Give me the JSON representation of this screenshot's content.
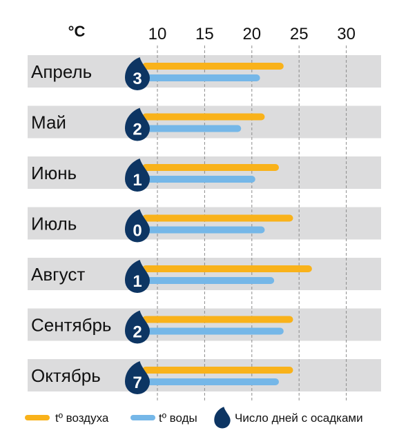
{
  "chart_data": {
    "type": "bar",
    "unit": "°C",
    "categories": [
      "Апрель",
      "Май",
      "Июнь",
      "Июль",
      "Август",
      "Сентябрь",
      "Октябрь"
    ],
    "series": [
      {
        "name": "tº воздуха",
        "values": [
          23,
          21,
          22.5,
          24,
          26,
          24,
          24
        ],
        "color": "#f9b21a"
      },
      {
        "name": "tº воды",
        "values": [
          20.5,
          18.5,
          20,
          21,
          22,
          23,
          22.5
        ],
        "color": "#75b7e8"
      },
      {
        "name": "Число дней с осадками",
        "values": [
          3,
          2,
          1,
          0,
          1,
          2,
          7
        ],
        "color": "#0d3563"
      }
    ],
    "x_ticks": [
      10,
      15,
      20,
      25,
      30
    ],
    "xlim": [
      10,
      30
    ],
    "grid": true,
    "legend_position": "bottom"
  }
}
